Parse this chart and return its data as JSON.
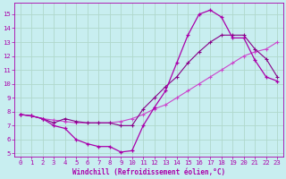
{
  "background_color": "#c8eef0",
  "grid_color": "#b0d8cc",
  "line_color1": "#aa00aa",
  "line_color2": "#cc44cc",
  "line_color3": "#880088",
  "xlim": [
    -0.5,
    23.5
  ],
  "ylim": [
    4.8,
    15.8
  ],
  "xticks": [
    0,
    1,
    2,
    3,
    4,
    5,
    6,
    7,
    8,
    9,
    10,
    11,
    12,
    13,
    14,
    15,
    16,
    17,
    18,
    19,
    20,
    21,
    22,
    23
  ],
  "yticks": [
    5,
    6,
    7,
    8,
    9,
    10,
    11,
    12,
    13,
    14,
    15
  ],
  "xlabel": "Windchill (Refroidissement éolien,°C)",
  "line1_x": [
    0,
    1,
    2,
    3,
    4,
    5,
    6,
    7,
    8,
    9,
    10,
    11,
    12,
    13,
    14,
    15,
    16,
    17,
    18,
    19,
    20,
    21,
    22,
    23
  ],
  "line1_y": [
    7.8,
    7.7,
    7.5,
    7.0,
    6.8,
    6.0,
    5.7,
    5.5,
    5.5,
    5.1,
    5.2,
    7.0,
    8.3,
    9.5,
    11.5,
    13.5,
    15.0,
    15.3,
    14.8,
    13.3,
    13.3,
    11.7,
    10.5,
    10.2
  ],
  "line2_x": [
    0,
    1,
    2,
    3,
    4,
    5,
    6,
    7,
    8,
    9,
    10,
    11,
    12,
    13,
    14,
    15,
    16,
    17,
    18,
    19,
    20,
    21,
    22,
    23
  ],
  "line2_y": [
    7.8,
    7.7,
    7.5,
    7.4,
    7.3,
    7.2,
    7.2,
    7.2,
    7.2,
    7.3,
    7.5,
    7.8,
    8.2,
    8.5,
    9.0,
    9.5,
    10.0,
    10.5,
    11.0,
    11.5,
    12.0,
    12.3,
    12.5,
    13.0
  ],
  "line3_x": [
    0,
    1,
    2,
    3,
    4,
    5,
    6,
    7,
    8,
    9,
    10,
    11,
    12,
    13,
    14,
    15,
    16,
    17,
    18,
    19,
    20,
    21,
    22,
    23
  ],
  "line3_y": [
    7.8,
    7.7,
    7.5,
    7.2,
    7.5,
    7.3,
    7.2,
    7.2,
    7.2,
    7.0,
    7.0,
    8.2,
    9.0,
    9.8,
    10.5,
    11.5,
    12.3,
    13.0,
    13.5,
    13.5,
    13.5,
    12.5,
    11.8,
    10.5
  ],
  "tick_fontsize": 5.2,
  "label_fontsize": 5.5
}
